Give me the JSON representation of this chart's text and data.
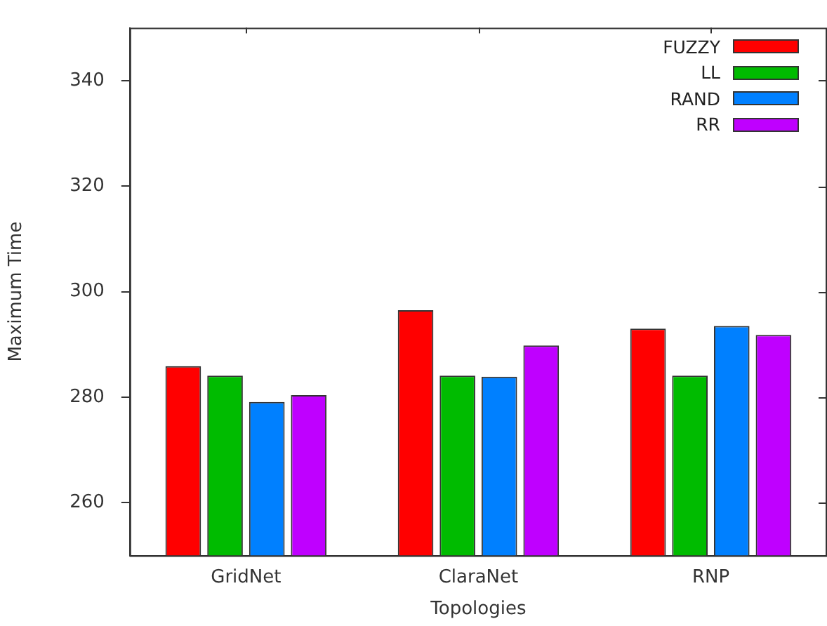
{
  "chart_data": {
    "type": "bar",
    "xlabel": "Topologies",
    "ylabel": "Maximum Time",
    "categories": [
      "GridNet",
      "ClaraNet",
      "RNP"
    ],
    "series": [
      {
        "name": "FUZZY",
        "color": "#ff0000",
        "values": [
          285.9,
          296.5,
          293.0
        ]
      },
      {
        "name": "LL",
        "color": "#00bb00",
        "values": [
          284.1,
          284.1,
          284.1
        ]
      },
      {
        "name": "RAND",
        "color": "#0080ff",
        "values": [
          279.1,
          283.9,
          293.5
        ]
      },
      {
        "name": "RR",
        "color": "#bf00ff",
        "values": [
          280.4,
          289.8,
          291.8
        ]
      }
    ],
    "ylim": [
      250,
      350
    ],
    "yticks": [
      260,
      280,
      300,
      320,
      340
    ],
    "grid": false,
    "legend": "top right"
  }
}
